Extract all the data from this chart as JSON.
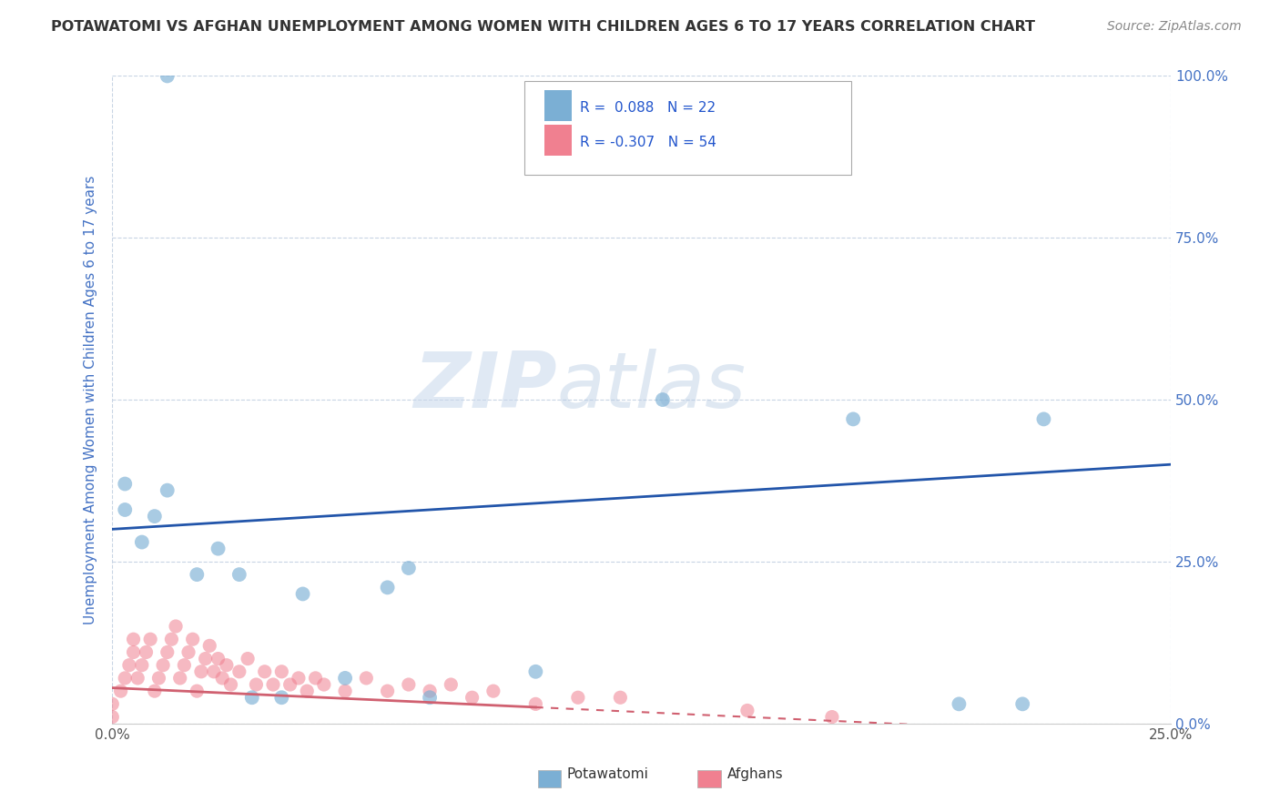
{
  "title": "POTAWATOMI VS AFGHAN UNEMPLOYMENT AMONG WOMEN WITH CHILDREN AGES 6 TO 17 YEARS CORRELATION CHART",
  "source": "Source: ZipAtlas.com",
  "ylabel": "Unemployment Among Women with Children Ages 6 to 17 years",
  "xlim": [
    0.0,
    0.25
  ],
  "ylim": [
    0.0,
    1.0
  ],
  "xticks": [
    0.0,
    0.25
  ],
  "yticks": [
    0.0,
    0.25,
    0.5,
    0.75,
    1.0
  ],
  "potawatomi_x": [
    0.003,
    0.003,
    0.007,
    0.01,
    0.013,
    0.02,
    0.025,
    0.03,
    0.033,
    0.04,
    0.045,
    0.055,
    0.065,
    0.07,
    0.075,
    0.1,
    0.13,
    0.175,
    0.2,
    0.215,
    0.22,
    0.013
  ],
  "potawatomi_y": [
    0.33,
    0.37,
    0.28,
    0.32,
    0.36,
    0.23,
    0.27,
    0.23,
    0.04,
    0.04,
    0.2,
    0.07,
    0.21,
    0.24,
    0.04,
    0.08,
    0.5,
    0.47,
    0.03,
    0.03,
    0.47,
    1.0
  ],
  "afghan_x": [
    0.0,
    0.0,
    0.002,
    0.003,
    0.004,
    0.005,
    0.005,
    0.006,
    0.007,
    0.008,
    0.009,
    0.01,
    0.011,
    0.012,
    0.013,
    0.014,
    0.015,
    0.016,
    0.017,
    0.018,
    0.019,
    0.02,
    0.021,
    0.022,
    0.023,
    0.024,
    0.025,
    0.026,
    0.027,
    0.028,
    0.03,
    0.032,
    0.034,
    0.036,
    0.038,
    0.04,
    0.042,
    0.044,
    0.046,
    0.048,
    0.05,
    0.055,
    0.06,
    0.065,
    0.07,
    0.075,
    0.08,
    0.085,
    0.09,
    0.1,
    0.11,
    0.12,
    0.15,
    0.17
  ],
  "afghan_y": [
    0.01,
    0.03,
    0.05,
    0.07,
    0.09,
    0.11,
    0.13,
    0.07,
    0.09,
    0.11,
    0.13,
    0.05,
    0.07,
    0.09,
    0.11,
    0.13,
    0.15,
    0.07,
    0.09,
    0.11,
    0.13,
    0.05,
    0.08,
    0.1,
    0.12,
    0.08,
    0.1,
    0.07,
    0.09,
    0.06,
    0.08,
    0.1,
    0.06,
    0.08,
    0.06,
    0.08,
    0.06,
    0.07,
    0.05,
    0.07,
    0.06,
    0.05,
    0.07,
    0.05,
    0.06,
    0.05,
    0.06,
    0.04,
    0.05,
    0.03,
    0.04,
    0.04,
    0.02,
    0.01
  ],
  "potawatomi_color": "#7bafd4",
  "afghan_color": "#f08090",
  "potawatomi_trend_color": "#2255aa",
  "afghan_trend_color": "#d06070",
  "background_color": "#ffffff",
  "grid_color": "#c8d4e4",
  "watermark_zip": "ZIP",
  "watermark_atlas": "atlas",
  "R_potawatomi": 0.088,
  "N_potawatomi": 22,
  "R_afghan": -0.307,
  "N_afghan": 54,
  "pot_trend_y0": 0.3,
  "pot_trend_y1": 0.4,
  "afg_trend_y0": 0.055,
  "afg_trend_y1": -0.02,
  "afg_trend_dash_start": 0.1
}
